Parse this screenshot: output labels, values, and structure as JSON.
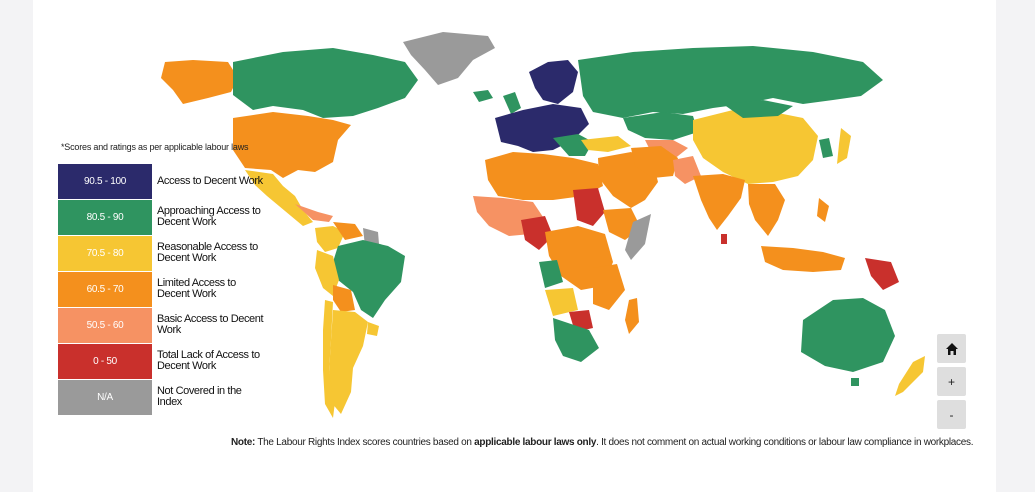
{
  "legend": {
    "note": "*Scores and ratings as per applicable labour laws",
    "items": [
      {
        "range": "90.5 - 100",
        "label": "Access to Decent Work",
        "color": "#2b2a6b"
      },
      {
        "range": "80.5 - 90",
        "label": "Approaching Access to Decent Work",
        "color": "#2f9460"
      },
      {
        "range": "70.5 - 80",
        "label": "Reasonable Access to Decent Work",
        "color": "#f6c633"
      },
      {
        "range": "60.5 - 70",
        "label": "Limited Access to Decent Work",
        "color": "#f4901d"
      },
      {
        "range": "50.5 - 60",
        "label": "Basic Access to Decent Work",
        "color": "#f69263"
      },
      {
        "range": "0 - 50",
        "label": "Total Lack of Access to Decent Work",
        "color": "#c9302c"
      },
      {
        "range": "N/A",
        "label": "Not Covered in the Index",
        "color": "#9a9a9a"
      }
    ]
  },
  "controls": {
    "home_icon": "home-icon",
    "zoom_in": "+",
    "zoom_out": "-"
  },
  "footnote": {
    "note_label": "Note:",
    "text_1": " The Labour Rights Index scores countries based on ",
    "bold": "applicable labour laws only",
    "text_2": ". It does not comment on actual working conditions or labour law compliance in workplaces."
  }
}
